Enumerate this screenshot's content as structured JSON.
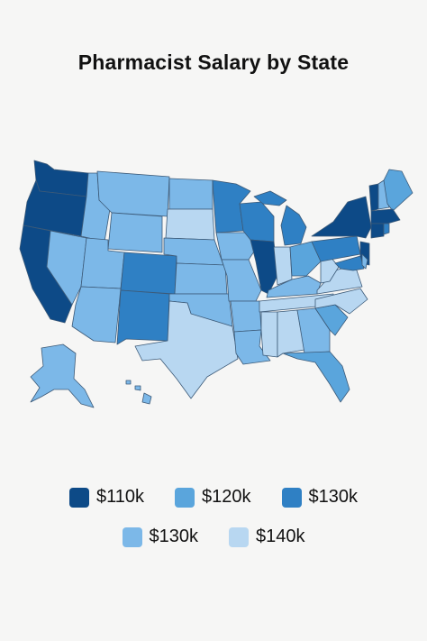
{
  "title": "Pharmacist Salary by State",
  "colors": {
    "tier_110k": "#0d4a87",
    "tier_120k": "#5aa5dc",
    "tier_130k_dark": "#2f80c4",
    "tier_130k_light": "#7cb8e8",
    "tier_140k": "#b8d7f1"
  },
  "legend": [
    {
      "label": "$110k",
      "color": "#0d4a87"
    },
    {
      "label": "$120k",
      "color": "#5aa5dc"
    },
    {
      "label": "$130k",
      "color": "#2f80c4"
    },
    {
      "label": "$130k",
      "color": "#7cb8e8"
    },
    {
      "label": "$140k",
      "color": "#b8d7f1"
    }
  ]
}
